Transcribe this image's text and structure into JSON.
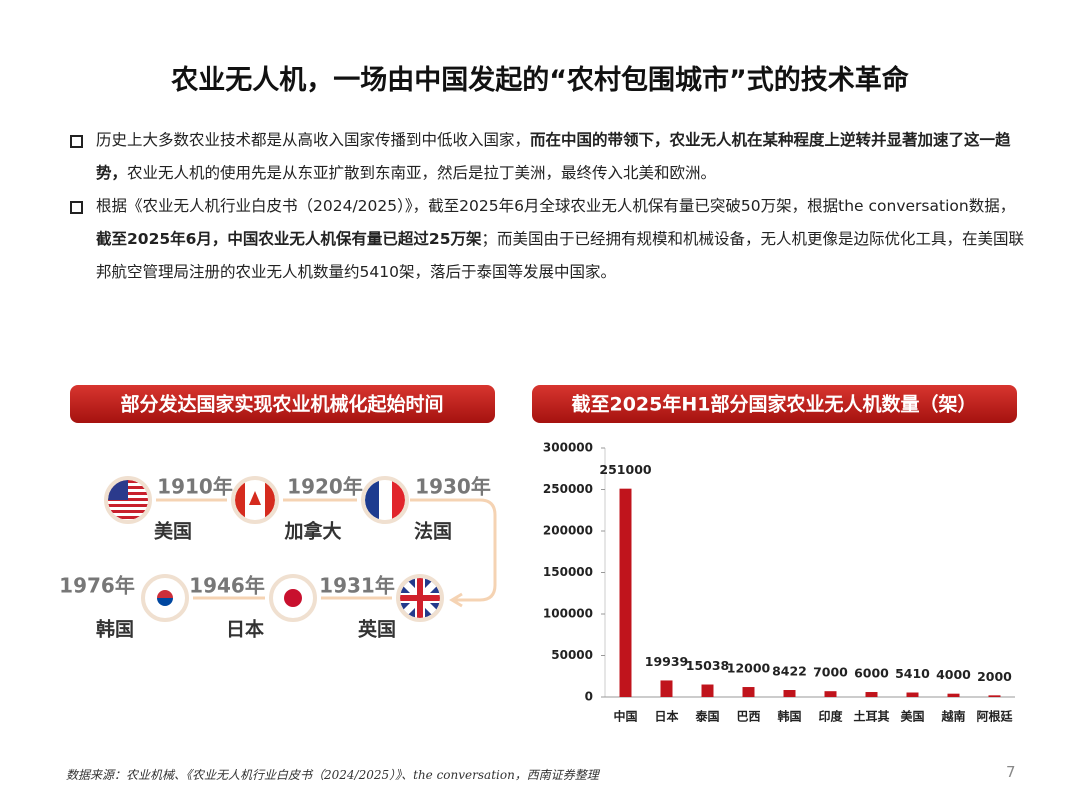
{
  "title": "农业无人机，一场由中国发起的“农村包围城市”式的技术革命",
  "bullets": [
    [
      {
        "text": "历史上大多数农业技术都是从高收入国家传播到中低收入国家，",
        "bold": false
      },
      {
        "text": "而在中国的带领下，农业无人机在某种程度上逆转并显著加速了这一趋势，",
        "bold": true
      },
      {
        "text": "农业无人机的使用先是从东亚扩散到东南亚，然后是拉丁美洲，最终传入北美和欧洲。",
        "bold": false
      }
    ],
    [
      {
        "text": "根据《农业无人机行业白皮书（2024/2025）》，截至2025年6月全球农业无人机保有量已突破50万架，根据the conversation数据，",
        "bold": false
      },
      {
        "text": "截至2025年6月，中国农业无人机保有量已超过25万架",
        "bold": true
      },
      {
        "text": "；而美国由于已经拥有规模和机械设备，无人机更像是边际优化工具，在美国联邦航空管理局注册的农业无人机数量约5410架，落后于泰国等发展中国家。",
        "bold": false
      }
    ]
  ],
  "timeline": {
    "title": "部分发达国家实现农业机械化起始时间",
    "items": [
      {
        "country": "美国",
        "year": "1910年"
      },
      {
        "country": "加拿大",
        "year": "1920年"
      },
      {
        "country": "法国",
        "year": "1930年"
      },
      {
        "country": "英国",
        "year": "1931年"
      },
      {
        "country": "日本",
        "year": "1946年"
      },
      {
        "country": "韩国",
        "year": "1976年"
      }
    ]
  },
  "chart_data": {
    "type": "bar",
    "title": "截至2025年H1部分国家农业无人机数量（架）",
    "categories": [
      "中国",
      "日本",
      "泰国",
      "巴西",
      "韩国",
      "印度",
      "土耳其",
      "美国",
      "越南",
      "阿根廷"
    ],
    "values": [
      251000,
      19939,
      15038,
      12000,
      8422,
      7000,
      6000,
      5410,
      4000,
      2000
    ],
    "color": "#c0141c",
    "ylim": [
      0,
      300000
    ],
    "yticks": [
      0,
      50000,
      100000,
      150000,
      200000,
      250000,
      300000
    ],
    "grid": false
  },
  "source": "数据来源：农业机械、《农业无人机行业白皮书（2024/2025）》、the conversation，西南证券整理",
  "page_number": "7"
}
